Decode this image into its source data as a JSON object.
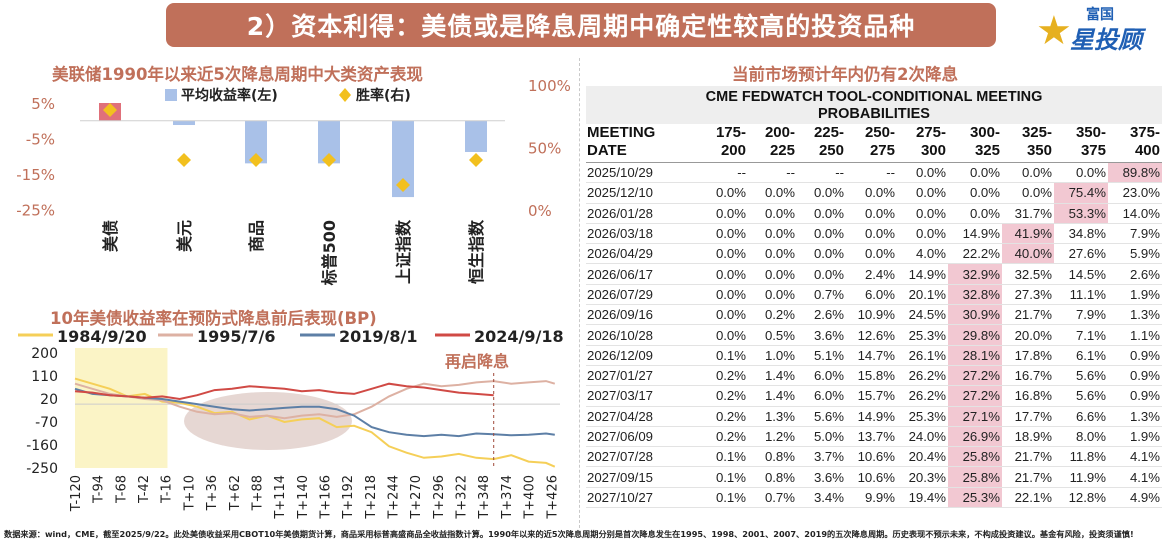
{
  "header": {
    "banner_title": "2）资本利得：美债或是降息周期中确定性较高的投资品种",
    "logo_small": "富国",
    "logo_big": "星投顾"
  },
  "left_top": {
    "title": "美联储1990年以来近5次降息周期中大类资产表现"
  },
  "left_bottom": {
    "title": "10年美债收益率在预防式降息前后表现(BP)",
    "annotation": "再启降息"
  },
  "right": {
    "title": "当前市场预计年内仍有2次降息",
    "table_title_line1": "CME FEDWATCH TOOL-CONDITIONAL MEETING",
    "table_title_line2": "PROBABILITIES"
  },
  "footer": {
    "text": "数据来源：wind，CME，截至2025/9/22。此处美债收益采用CBOT10年美债期货计算，商品采用标普高盛商品全收益指数计算。1990年以来的近5次降息周期分别是首次降息发生在1995、1998、2001、2007、2019的五次降息周期。历史表现不预示未来，不构成投资建议。基金有风险，投资须谨慎!"
  },
  "chart_data": [
    {
      "type": "bar",
      "categories": [
        "美债",
        "美元",
        "商品",
        "标普500",
        "上证指数",
        "恒生指数"
      ],
      "series": [
        {
          "name": "平均收益率(左)",
          "type": "bar",
          "axis": "left",
          "color": "#a9c1e8",
          "values": [
            5.0,
            -1.2,
            -12.0,
            -12.0,
            -21.5,
            -8.8
          ]
        },
        {
          "name": "胜率(右)",
          "type": "scatter",
          "axis": "right",
          "color": "#f2c01e",
          "values": [
            80,
            40,
            40,
            40,
            20,
            40
          ]
        }
      ],
      "highlight_category": {
        "index": 0,
        "color": "#e0707a"
      },
      "yleft": {
        "ticks": [
          5,
          -5,
          -15,
          -25
        ],
        "tick_labels": [
          "5%",
          "-5%",
          "-15%",
          "-25%"
        ],
        "range": [
          -25,
          5
        ]
      },
      "yright": {
        "ticks": [
          100,
          50,
          0
        ],
        "tick_labels": [
          "100%",
          "50%",
          "0%"
        ],
        "range": [
          0,
          100
        ]
      },
      "legend_position": "top"
    },
    {
      "type": "line",
      "x_tick_labels": [
        "T-120",
        "T-94",
        "T-68",
        "T-42",
        "T-16",
        "T+10",
        "T+36",
        "T+62",
        "T+88",
        "T+114",
        "T+140",
        "T+166",
        "T+192",
        "T+218",
        "T+244",
        "T+270",
        "T+296",
        "T+322",
        "T+348",
        "T+374",
        "T+400",
        "T+426"
      ],
      "x_ticks": [
        -120,
        -94,
        -68,
        -42,
        -16,
        10,
        36,
        62,
        88,
        114,
        140,
        166,
        192,
        218,
        244,
        270,
        296,
        322,
        348,
        374,
        400,
        426
      ],
      "xlim": [
        -120,
        436
      ],
      "ylim": [
        -250,
        200
      ],
      "y_ticks": [
        200,
        110,
        20,
        -70,
        -160,
        -250
      ],
      "shaded_window": [
        -120,
        -14
      ],
      "cut_marker_x": 360,
      "series": [
        {
          "name": "1984/9/20",
          "color": "#f5cf58",
          "x": [
            -120,
            -100,
            -80,
            -60,
            -40,
            -20,
            0,
            20,
            40,
            60,
            80,
            100,
            120,
            140,
            160,
            180,
            200,
            220,
            240,
            260,
            280,
            300,
            320,
            340,
            360,
            380,
            400,
            420,
            430
          ],
          "y": [
            100,
            80,
            60,
            30,
            40,
            10,
            5,
            -10,
            -35,
            -30,
            -60,
            -45,
            -70,
            -60,
            -55,
            -90,
            -85,
            -110,
            -165,
            -190,
            -210,
            -205,
            -195,
            -210,
            -215,
            -200,
            -225,
            -230,
            -245
          ]
        },
        {
          "name": "1995/7/6",
          "color": "#ddb1a3",
          "x": [
            -120,
            -100,
            -80,
            -60,
            -40,
            -20,
            0,
            20,
            40,
            60,
            80,
            100,
            120,
            140,
            160,
            180,
            200,
            220,
            240,
            260,
            280,
            300,
            320,
            340,
            360,
            380,
            400,
            420,
            430
          ],
          "y": [
            80,
            60,
            40,
            30,
            20,
            15,
            -10,
            -30,
            -40,
            -35,
            -50,
            -45,
            -55,
            -45,
            -40,
            -50,
            -40,
            -10,
            30,
            60,
            80,
            70,
            75,
            85,
            90,
            80,
            85,
            90,
            80
          ]
        },
        {
          "name": "2019/8/1",
          "color": "#5d7fa6",
          "x": [
            -120,
            -100,
            -80,
            -60,
            -40,
            -20,
            0,
            20,
            40,
            60,
            80,
            100,
            120,
            140,
            160,
            180,
            200,
            220,
            240,
            260,
            280,
            300,
            320,
            340,
            360,
            380,
            400,
            420,
            430
          ],
          "y": [
            60,
            40,
            35,
            30,
            25,
            20,
            10,
            0,
            -10,
            -20,
            -25,
            -20,
            -15,
            -10,
            -10,
            -20,
            -45,
            -90,
            -110,
            -120,
            -125,
            -120,
            -125,
            -115,
            -118,
            -122,
            -120,
            -115,
            -120
          ]
        },
        {
          "name": "2024/9/18",
          "color": "#d04a45",
          "x": [
            -120,
            -100,
            -80,
            -60,
            -40,
            -20,
            0,
            20,
            40,
            60,
            80,
            100,
            120,
            140,
            160,
            180,
            200,
            220,
            240,
            260,
            280,
            300,
            320,
            340,
            360
          ],
          "y": [
            50,
            45,
            35,
            30,
            25,
            30,
            20,
            35,
            55,
            60,
            70,
            65,
            60,
            50,
            55,
            45,
            40,
            60,
            80,
            70,
            65,
            55,
            45,
            40,
            35
          ]
        }
      ]
    },
    {
      "type": "table",
      "columns": [
        "MEETING DATE",
        "175-200",
        "200-225",
        "225-250",
        "250-275",
        "275-300",
        "300-325",
        "325-350",
        "350-375",
        "375-400"
      ],
      "rows": [
        {
          "date": "2025/10/29",
          "cells": [
            "--",
            "--",
            "--",
            "--",
            "0.0%",
            "0.0%",
            "0.0%",
            "0.0%",
            "89.8%"
          ],
          "hl": 8
        },
        {
          "date": "2025/12/10",
          "cells": [
            "0.0%",
            "0.0%",
            "0.0%",
            "0.0%",
            "0.0%",
            "0.0%",
            "0.0%",
            "75.4%",
            "23.0%"
          ],
          "hl": 7
        },
        {
          "date": "2026/01/28",
          "cells": [
            "0.0%",
            "0.0%",
            "0.0%",
            "0.0%",
            "0.0%",
            "0.0%",
            "31.7%",
            "53.3%",
            "14.0%"
          ],
          "hl": 7
        },
        {
          "date": "2026/03/18",
          "cells": [
            "0.0%",
            "0.0%",
            "0.0%",
            "0.0%",
            "0.0%",
            "14.9%",
            "41.9%",
            "34.8%",
            "7.9%"
          ],
          "hl": 6
        },
        {
          "date": "2026/04/29",
          "cells": [
            "0.0%",
            "0.0%",
            "0.0%",
            "0.0%",
            "4.0%",
            "22.2%",
            "40.0%",
            "27.6%",
            "5.9%"
          ],
          "hl": 6
        },
        {
          "date": "2026/06/17",
          "cells": [
            "0.0%",
            "0.0%",
            "0.0%",
            "2.4%",
            "14.9%",
            "32.9%",
            "32.5%",
            "14.5%",
            "2.6%"
          ],
          "hl": 5
        },
        {
          "date": "2026/07/29",
          "cells": [
            "0.0%",
            "0.0%",
            "0.7%",
            "6.0%",
            "20.1%",
            "32.8%",
            "27.3%",
            "11.1%",
            "1.9%"
          ],
          "hl": 5
        },
        {
          "date": "2026/09/16",
          "cells": [
            "0.0%",
            "0.2%",
            "2.6%",
            "10.9%",
            "24.5%",
            "30.9%",
            "21.7%",
            "7.9%",
            "1.3%"
          ],
          "hl": 5
        },
        {
          "date": "2026/10/28",
          "cells": [
            "0.0%",
            "0.5%",
            "3.6%",
            "12.6%",
            "25.3%",
            "29.8%",
            "20.0%",
            "7.1%",
            "1.1%"
          ],
          "hl": 5
        },
        {
          "date": "2026/12/09",
          "cells": [
            "0.1%",
            "1.0%",
            "5.1%",
            "14.7%",
            "26.1%",
            "28.1%",
            "17.8%",
            "6.1%",
            "0.9%"
          ],
          "hl": 5
        },
        {
          "date": "2027/01/27",
          "cells": [
            "0.2%",
            "1.4%",
            "6.0%",
            "15.8%",
            "26.2%",
            "27.2%",
            "16.7%",
            "5.6%",
            "0.9%"
          ],
          "hl": 5
        },
        {
          "date": "2027/03/17",
          "cells": [
            "0.2%",
            "1.4%",
            "6.0%",
            "15.7%",
            "26.2%",
            "27.2%",
            "16.8%",
            "5.6%",
            "0.9%"
          ],
          "hl": 5
        },
        {
          "date": "2027/04/28",
          "cells": [
            "0.2%",
            "1.3%",
            "5.6%",
            "14.9%",
            "25.3%",
            "27.1%",
            "17.7%",
            "6.6%",
            "1.3%"
          ],
          "hl": 5
        },
        {
          "date": "2027/06/09",
          "cells": [
            "0.2%",
            "1.2%",
            "5.0%",
            "13.7%",
            "24.0%",
            "26.9%",
            "18.9%",
            "8.0%",
            "1.9%"
          ],
          "hl": 5
        },
        {
          "date": "2027/07/28",
          "cells": [
            "0.1%",
            "0.8%",
            "3.7%",
            "10.6%",
            "20.4%",
            "25.8%",
            "21.7%",
            "11.8%",
            "4.1%"
          ],
          "hl": 5
        },
        {
          "date": "2027/09/15",
          "cells": [
            "0.1%",
            "0.8%",
            "3.6%",
            "10.6%",
            "20.3%",
            "25.8%",
            "21.7%",
            "11.9%",
            "4.1%"
          ],
          "hl": 5
        },
        {
          "date": "2027/10/27",
          "cells": [
            "0.1%",
            "0.7%",
            "3.4%",
            "9.9%",
            "19.4%",
            "25.3%",
            "22.1%",
            "12.8%",
            "4.9%"
          ],
          "hl": 5
        }
      ]
    }
  ]
}
